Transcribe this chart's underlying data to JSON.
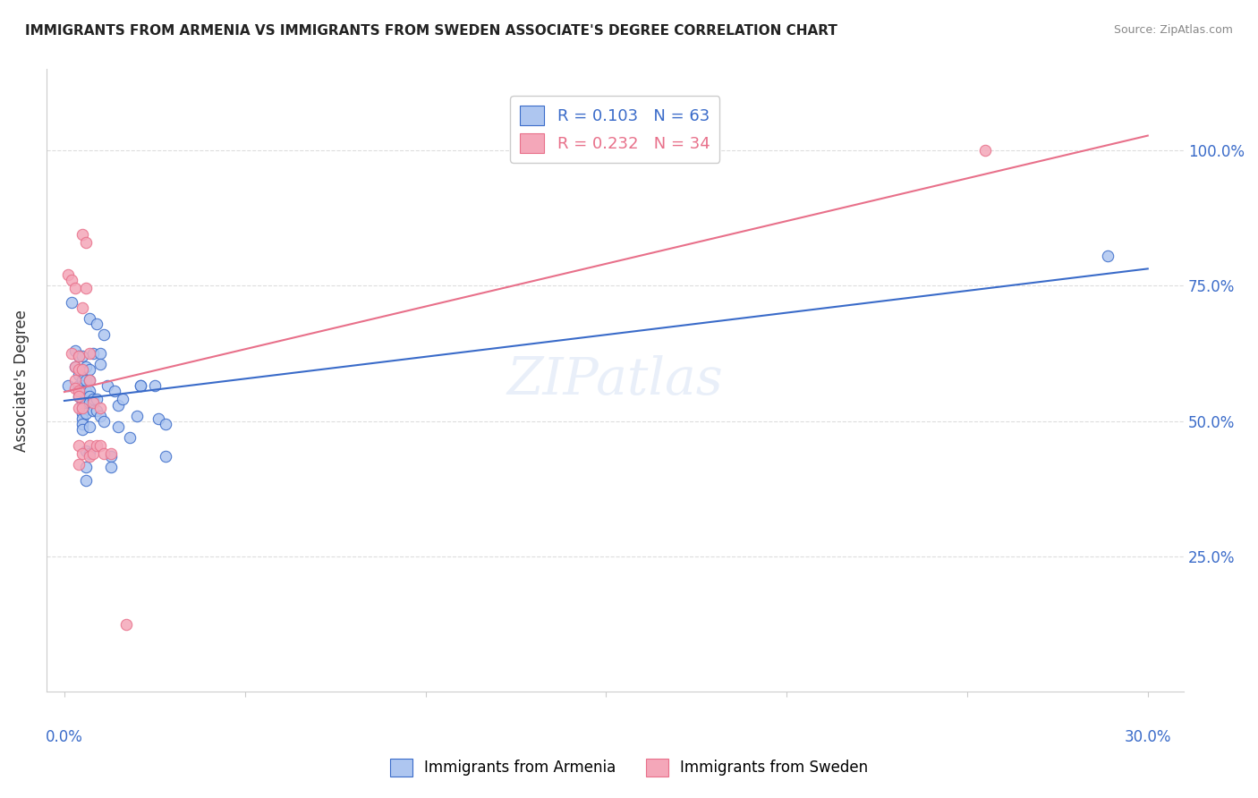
{
  "title": "IMMIGRANTS FROM ARMENIA VS IMMIGRANTS FROM SWEDEN ASSOCIATE'S DEGREE CORRELATION CHART",
  "source": "Source: ZipAtlas.com",
  "ylabel": "Associate's Degree",
  "legend_line1": "R = 0.103   N = 63",
  "legend_line2": "R = 0.232   N = 34",
  "armenia_color": "#aec6f0",
  "sweden_color": "#f4a7b9",
  "armenia_line_color": "#3a6bc9",
  "sweden_line_color": "#e8708a",
  "armenia_scatter": [
    [
      0.001,
      0.565
    ],
    [
      0.002,
      0.72
    ],
    [
      0.003,
      0.63
    ],
    [
      0.003,
      0.6
    ],
    [
      0.004,
      0.62
    ],
    [
      0.004,
      0.585
    ],
    [
      0.004,
      0.565
    ],
    [
      0.004,
      0.545
    ],
    [
      0.005,
      0.62
    ],
    [
      0.005,
      0.595
    ],
    [
      0.005,
      0.575
    ],
    [
      0.005,
      0.565
    ],
    [
      0.005,
      0.555
    ],
    [
      0.005,
      0.535
    ],
    [
      0.005,
      0.525
    ],
    [
      0.005,
      0.515
    ],
    [
      0.005,
      0.505
    ],
    [
      0.005,
      0.495
    ],
    [
      0.005,
      0.485
    ],
    [
      0.006,
      0.6
    ],
    [
      0.006,
      0.575
    ],
    [
      0.006,
      0.555
    ],
    [
      0.006,
      0.545
    ],
    [
      0.006,
      0.535
    ],
    [
      0.006,
      0.515
    ],
    [
      0.006,
      0.445
    ],
    [
      0.006,
      0.415
    ],
    [
      0.006,
      0.39
    ],
    [
      0.007,
      0.69
    ],
    [
      0.007,
      0.595
    ],
    [
      0.007,
      0.575
    ],
    [
      0.007,
      0.555
    ],
    [
      0.007,
      0.545
    ],
    [
      0.007,
      0.535
    ],
    [
      0.007,
      0.49
    ],
    [
      0.007,
      0.44
    ],
    [
      0.008,
      0.625
    ],
    [
      0.008,
      0.54
    ],
    [
      0.008,
      0.52
    ],
    [
      0.009,
      0.68
    ],
    [
      0.009,
      0.54
    ],
    [
      0.009,
      0.52
    ],
    [
      0.01,
      0.625
    ],
    [
      0.01,
      0.605
    ],
    [
      0.01,
      0.51
    ],
    [
      0.011,
      0.66
    ],
    [
      0.011,
      0.5
    ],
    [
      0.012,
      0.565
    ],
    [
      0.013,
      0.435
    ],
    [
      0.013,
      0.415
    ],
    [
      0.014,
      0.555
    ],
    [
      0.015,
      0.53
    ],
    [
      0.015,
      0.49
    ],
    [
      0.016,
      0.54
    ],
    [
      0.018,
      0.47
    ],
    [
      0.02,
      0.51
    ],
    [
      0.021,
      0.565
    ],
    [
      0.021,
      0.565
    ],
    [
      0.025,
      0.565
    ],
    [
      0.026,
      0.505
    ],
    [
      0.028,
      0.435
    ],
    [
      0.028,
      0.495
    ],
    [
      0.289,
      0.805
    ]
  ],
  "sweden_scatter": [
    [
      0.001,
      0.77
    ],
    [
      0.002,
      0.76
    ],
    [
      0.002,
      0.625
    ],
    [
      0.003,
      0.745
    ],
    [
      0.003,
      0.6
    ],
    [
      0.003,
      0.575
    ],
    [
      0.003,
      0.56
    ],
    [
      0.004,
      0.62
    ],
    [
      0.004,
      0.595
    ],
    [
      0.004,
      0.555
    ],
    [
      0.004,
      0.545
    ],
    [
      0.004,
      0.525
    ],
    [
      0.004,
      0.455
    ],
    [
      0.004,
      0.42
    ],
    [
      0.005,
      0.845
    ],
    [
      0.005,
      0.71
    ],
    [
      0.005,
      0.595
    ],
    [
      0.005,
      0.525
    ],
    [
      0.005,
      0.44
    ],
    [
      0.006,
      0.83
    ],
    [
      0.006,
      0.745
    ],
    [
      0.007,
      0.625
    ],
    [
      0.007,
      0.575
    ],
    [
      0.007,
      0.455
    ],
    [
      0.007,
      0.435
    ],
    [
      0.008,
      0.535
    ],
    [
      0.008,
      0.44
    ],
    [
      0.009,
      0.455
    ],
    [
      0.01,
      0.525
    ],
    [
      0.01,
      0.455
    ],
    [
      0.011,
      0.44
    ],
    [
      0.013,
      0.44
    ],
    [
      0.017,
      0.125
    ],
    [
      0.255,
      1.0
    ]
  ],
  "xlim": [
    -0.005,
    0.31
  ],
  "ylim": [
    0.0,
    1.15
  ],
  "x_ticks": [
    0.0,
    0.05,
    0.1,
    0.15,
    0.2,
    0.25,
    0.3
  ],
  "y_ticks": [
    0.25,
    0.5,
    0.75,
    1.0
  ],
  "background_color": "#ffffff",
  "grid_color": "#dddddd"
}
